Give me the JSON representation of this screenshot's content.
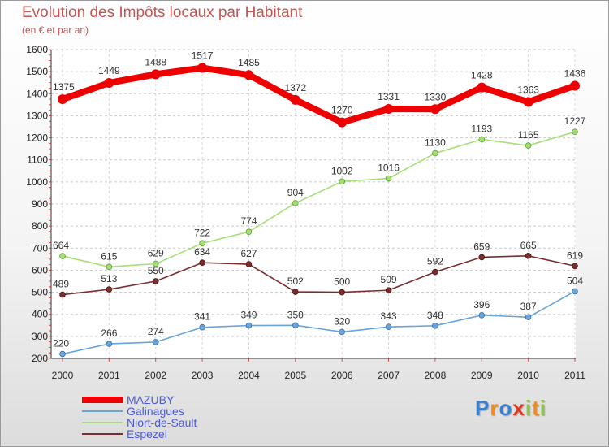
{
  "header": {
    "title": "Evolution des Impôts locaux par Habitant",
    "subtitle": "(en € et par an)"
  },
  "logo_text": "Proxiti",
  "chart_data": {
    "type": "line",
    "title": "Evolution des Impôts locaux par Habitant",
    "subtitle": "(en € et par an)",
    "xlabel": "",
    "ylabel": "",
    "x": [
      "2000",
      "2001",
      "2002",
      "2003",
      "2004",
      "2005",
      "2006",
      "2007",
      "2008",
      "2009",
      "2010",
      "2011"
    ],
    "ylim": [
      200,
      1600
    ],
    "yticks": [
      200,
      300,
      400,
      500,
      600,
      700,
      800,
      900,
      1000,
      1100,
      1200,
      1300,
      1400,
      1500,
      1600
    ],
    "grid": "horizontal dashed",
    "legend_position": "bottom-left",
    "series": [
      {
        "name": "MAZUBY",
        "color": "#ee0000",
        "values": [
          1375,
          1449,
          1488,
          1517,
          1485,
          1372,
          1270,
          1331,
          1330,
          1428,
          1363,
          1436
        ]
      },
      {
        "name": "Galinagues",
        "color": "#6aa5d9",
        "values": [
          220,
          266,
          274,
          341,
          349,
          350,
          320,
          343,
          348,
          396,
          387,
          504
        ]
      },
      {
        "name": "Niort-de-Sault",
        "color": "#a6df78",
        "values": [
          664,
          615,
          629,
          722,
          774,
          904,
          1002,
          1016,
          1130,
          1193,
          1165,
          1227
        ]
      },
      {
        "name": "Espezel",
        "color": "#7a2e2e",
        "values": [
          489,
          513,
          550,
          634,
          627,
          502,
          500,
          509,
          592,
          659,
          665,
          619
        ]
      }
    ]
  }
}
